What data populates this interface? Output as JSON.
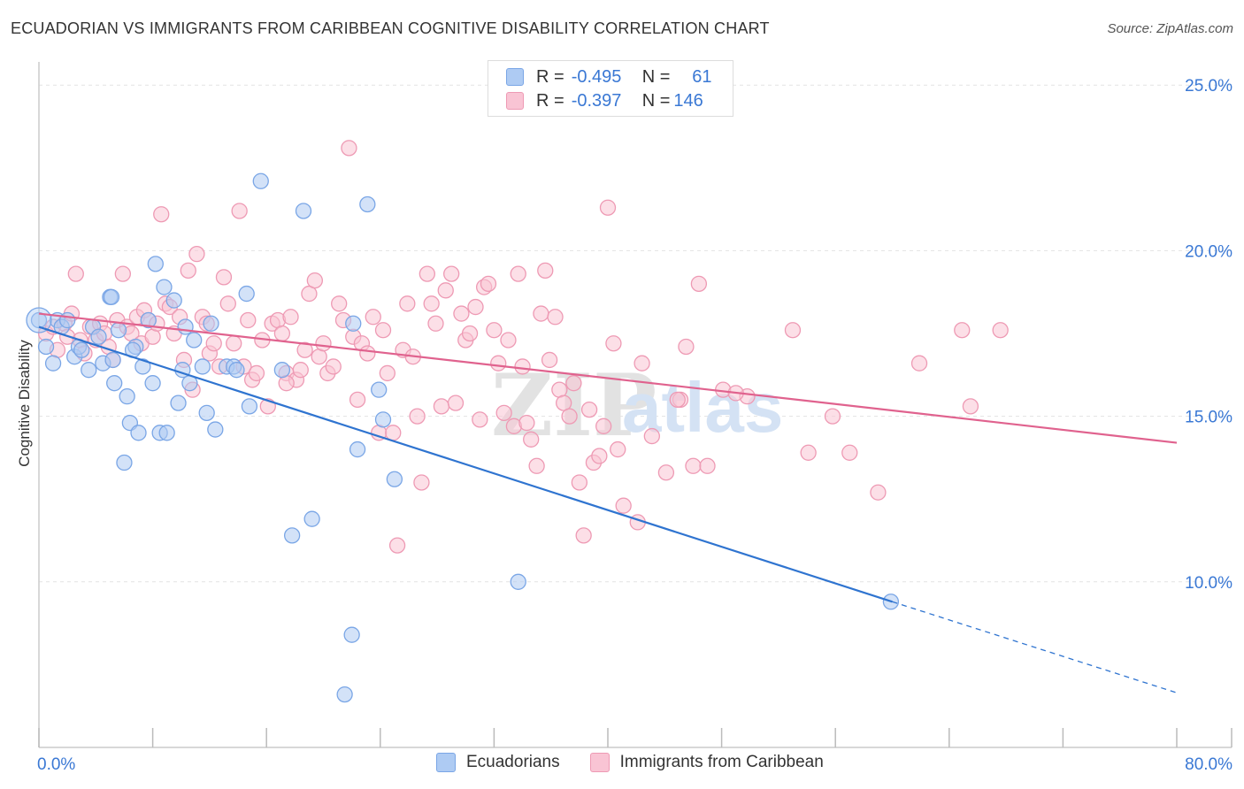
{
  "title": "ECUADORIAN VS IMMIGRANTS FROM CARIBBEAN COGNITIVE DISABILITY CORRELATION CHART",
  "source": "Source: ZipAtlas.com",
  "watermark": {
    "zip": "ZIP",
    "atlas": "atlas"
  },
  "legend_box": {
    "r_label": "R =",
    "n_label": "N =",
    "rows": [
      {
        "r": "-0.495",
        "n": "61"
      },
      {
        "r": "-0.397",
        "n": "146"
      }
    ]
  },
  "colors": {
    "blue_fill": "#aecbf3",
    "blue_stroke": "#7aa6e6",
    "blue_line": "#2f74d0",
    "pink_fill": "#f9c4d4",
    "pink_stroke": "#ee9ab4",
    "pink_line": "#e0628e",
    "tick_label": "#3a78d4",
    "grid": "#e3e3e3"
  },
  "chart_data": {
    "type": "scatter",
    "title": "ECUADORIAN VS IMMIGRANTS FROM CARIBBEAN COGNITIVE DISABILITY CORRELATION CHART",
    "xlabel": "",
    "ylabel": "Cognitive Disability",
    "xlim": [
      0,
      80
    ],
    "ylim": [
      5,
      25.7
    ],
    "x_tick_labels": [
      "0.0%",
      "80.0%"
    ],
    "y_ticks": [
      10,
      15,
      20,
      25
    ],
    "y_tick_labels": [
      "10.0%",
      "15.0%",
      "20.0%",
      "25.0%"
    ],
    "legend_position": "bottom",
    "series": [
      {
        "name": "Ecuadorians",
        "r": -0.495,
        "n": 61,
        "trend": {
          "x0": 0,
          "y0": 17.7,
          "x1": 60,
          "y1": 9.4,
          "dash_to_x": 80,
          "dash_to_y": 6.65
        },
        "points": [
          [
            0,
            17.9
          ],
          [
            0.5,
            17.1
          ],
          [
            1,
            16.6
          ],
          [
            1.3,
            17.9
          ],
          [
            1.6,
            17.7
          ],
          [
            2.0,
            17.9
          ],
          [
            2.5,
            16.8
          ],
          [
            2.8,
            17.1
          ],
          [
            3.5,
            16.4
          ],
          [
            3.8,
            17.7
          ],
          [
            4.2,
            17.4
          ],
          [
            4.5,
            16.6
          ],
          [
            5.0,
            18.6
          ],
          [
            5.1,
            18.6
          ],
          [
            5.3,
            16.0
          ],
          [
            5.6,
            17.6
          ],
          [
            6.0,
            13.6
          ],
          [
            6.2,
            15.6
          ],
          [
            6.4,
            14.8
          ],
          [
            6.8,
            17.1
          ],
          [
            7.0,
            14.5
          ],
          [
            7.3,
            16.5
          ],
          [
            7.7,
            17.9
          ],
          [
            8.0,
            16.0
          ],
          [
            8.2,
            19.6
          ],
          [
            8.5,
            14.5
          ],
          [
            8.8,
            18.9
          ],
          [
            9.0,
            14.5
          ],
          [
            9.5,
            18.5
          ],
          [
            9.8,
            15.4
          ],
          [
            10.1,
            16.4
          ],
          [
            10.3,
            17.7
          ],
          [
            10.6,
            16.0
          ],
          [
            10.9,
            17.3
          ],
          [
            11.5,
            16.5
          ],
          [
            11.8,
            15.1
          ],
          [
            12.1,
            17.8
          ],
          [
            12.4,
            14.6
          ],
          [
            13.2,
            16.5
          ],
          [
            13.7,
            16.5
          ],
          [
            13.9,
            16.4
          ],
          [
            14.6,
            18.7
          ],
          [
            14.8,
            15.3
          ],
          [
            15.6,
            22.1
          ],
          [
            17.1,
            16.4
          ],
          [
            18.6,
            21.2
          ],
          [
            17.8,
            11.4
          ],
          [
            19.2,
            11.9
          ],
          [
            22.1,
            17.8
          ],
          [
            22.4,
            14.0
          ],
          [
            23.1,
            21.4
          ],
          [
            23.9,
            15.8
          ],
          [
            24.2,
            14.9
          ],
          [
            25.0,
            13.1
          ],
          [
            22.0,
            8.4
          ],
          [
            21.5,
            6.6
          ],
          [
            33.7,
            10.0
          ],
          [
            59.9,
            9.4
          ],
          [
            3.0,
            17.0
          ],
          [
            5.2,
            16.7
          ],
          [
            6.6,
            17.0
          ]
        ]
      },
      {
        "name": "Immigrants from Caribbean",
        "r": -0.397,
        "n": 146,
        "trend": {
          "x0": 0,
          "y0": 18.1,
          "x1": 80,
          "y1": 14.2
        },
        "points": [
          [
            0.5,
            17.5
          ],
          [
            1.0,
            17.7
          ],
          [
            1.3,
            17.0
          ],
          [
            1.8,
            17.8
          ],
          [
            2.0,
            17.4
          ],
          [
            2.3,
            18.1
          ],
          [
            2.6,
            19.3
          ],
          [
            2.9,
            17.3
          ],
          [
            3.2,
            16.9
          ],
          [
            3.6,
            17.7
          ],
          [
            4.0,
            17.3
          ],
          [
            4.3,
            17.8
          ],
          [
            4.6,
            17.5
          ],
          [
            4.9,
            17.1
          ],
          [
            5.2,
            16.7
          ],
          [
            5.5,
            17.9
          ],
          [
            5.9,
            19.3
          ],
          [
            6.2,
            17.7
          ],
          [
            6.5,
            17.5
          ],
          [
            6.9,
            18.0
          ],
          [
            7.2,
            17.2
          ],
          [
            7.4,
            18.2
          ],
          [
            7.7,
            17.9
          ],
          [
            8.0,
            17.4
          ],
          [
            8.3,
            17.8
          ],
          [
            8.6,
            21.1
          ],
          [
            8.9,
            18.4
          ],
          [
            9.2,
            18.3
          ],
          [
            9.5,
            17.5
          ],
          [
            9.9,
            18.0
          ],
          [
            10.2,
            16.7
          ],
          [
            10.5,
            19.4
          ],
          [
            10.8,
            15.8
          ],
          [
            11.1,
            19.9
          ],
          [
            11.5,
            18.0
          ],
          [
            11.8,
            17.8
          ],
          [
            12.0,
            16.9
          ],
          [
            12.3,
            17.2
          ],
          [
            12.7,
            16.5
          ],
          [
            13.0,
            19.2
          ],
          [
            13.3,
            18.4
          ],
          [
            13.7,
            17.2
          ],
          [
            14.1,
            21.2
          ],
          [
            14.4,
            16.5
          ],
          [
            14.7,
            17.9
          ],
          [
            15.0,
            16.1
          ],
          [
            15.3,
            16.3
          ],
          [
            15.7,
            17.3
          ],
          [
            16.1,
            15.3
          ],
          [
            16.4,
            17.8
          ],
          [
            16.8,
            17.9
          ],
          [
            17.1,
            17.5
          ],
          [
            17.4,
            16.3
          ],
          [
            17.7,
            18.0
          ],
          [
            18.1,
            16.1
          ],
          [
            18.4,
            16.4
          ],
          [
            18.7,
            17.0
          ],
          [
            19.0,
            18.7
          ],
          [
            19.4,
            19.1
          ],
          [
            19.7,
            16.8
          ],
          [
            20.0,
            17.2
          ],
          [
            20.3,
            16.3
          ],
          [
            20.7,
            16.5
          ],
          [
            21.1,
            18.4
          ],
          [
            21.4,
            17.9
          ],
          [
            21.8,
            23.1
          ],
          [
            22.1,
            17.4
          ],
          [
            22.4,
            15.5
          ],
          [
            22.7,
            17.2
          ],
          [
            23.1,
            16.9
          ],
          [
            23.5,
            18.0
          ],
          [
            23.9,
            14.5
          ],
          [
            24.2,
            17.6
          ],
          [
            24.5,
            16.3
          ],
          [
            24.9,
            14.5
          ],
          [
            25.2,
            11.1
          ],
          [
            25.6,
            17.0
          ],
          [
            25.9,
            18.4
          ],
          [
            26.3,
            16.8
          ],
          [
            26.6,
            15.0
          ],
          [
            26.9,
            13.0
          ],
          [
            27.3,
            19.3
          ],
          [
            27.6,
            18.4
          ],
          [
            27.9,
            17.8
          ],
          [
            28.3,
            15.3
          ],
          [
            28.6,
            18.8
          ],
          [
            29.0,
            19.3
          ],
          [
            29.3,
            15.4
          ],
          [
            29.7,
            18.1
          ],
          [
            30.0,
            17.3
          ],
          [
            30.3,
            17.5
          ],
          [
            30.7,
            18.3
          ],
          [
            31.0,
            14.9
          ],
          [
            31.3,
            18.9
          ],
          [
            31.6,
            19.0
          ],
          [
            32.0,
            17.6
          ],
          [
            32.3,
            16.6
          ],
          [
            32.7,
            15.1
          ],
          [
            33.0,
            17.3
          ],
          [
            33.4,
            14.7
          ],
          [
            33.7,
            19.3
          ],
          [
            34.0,
            16.5
          ],
          [
            34.3,
            14.8
          ],
          [
            34.6,
            14.3
          ],
          [
            35.0,
            13.5
          ],
          [
            35.3,
            18.1
          ],
          [
            35.6,
            19.4
          ],
          [
            35.9,
            16.7
          ],
          [
            36.3,
            18.0
          ],
          [
            36.6,
            15.8
          ],
          [
            36.9,
            15.4
          ],
          [
            37.3,
            15.0
          ],
          [
            37.6,
            16.0
          ],
          [
            38.0,
            13.0
          ],
          [
            38.3,
            11.4
          ],
          [
            38.7,
            15.2
          ],
          [
            39.0,
            13.6
          ],
          [
            39.4,
            13.8
          ],
          [
            39.7,
            14.7
          ],
          [
            40.0,
            21.3
          ],
          [
            40.4,
            17.2
          ],
          [
            40.7,
            14.0
          ],
          [
            41.1,
            12.3
          ],
          [
            42.1,
            11.8
          ],
          [
            42.4,
            16.6
          ],
          [
            43.1,
            14.4
          ],
          [
            44.1,
            13.3
          ],
          [
            45.1,
            15.5
          ],
          [
            45.5,
            17.1
          ],
          [
            46.0,
            13.5
          ],
          [
            46.4,
            19.0
          ],
          [
            47.0,
            13.5
          ],
          [
            48.1,
            15.8
          ],
          [
            49.8,
            15.6
          ],
          [
            53.0,
            17.6
          ],
          [
            54.1,
            13.9
          ],
          [
            57.0,
            13.9
          ],
          [
            59.0,
            12.7
          ],
          [
            61.9,
            16.6
          ],
          [
            64.9,
            17.6
          ],
          [
            67.6,
            17.6
          ],
          [
            65.5,
            15.3
          ],
          [
            55.8,
            15.0
          ],
          [
            49.0,
            15.7
          ],
          [
            44.9,
            15.5
          ],
          [
            17.4,
            16.0
          ]
        ]
      }
    ]
  }
}
